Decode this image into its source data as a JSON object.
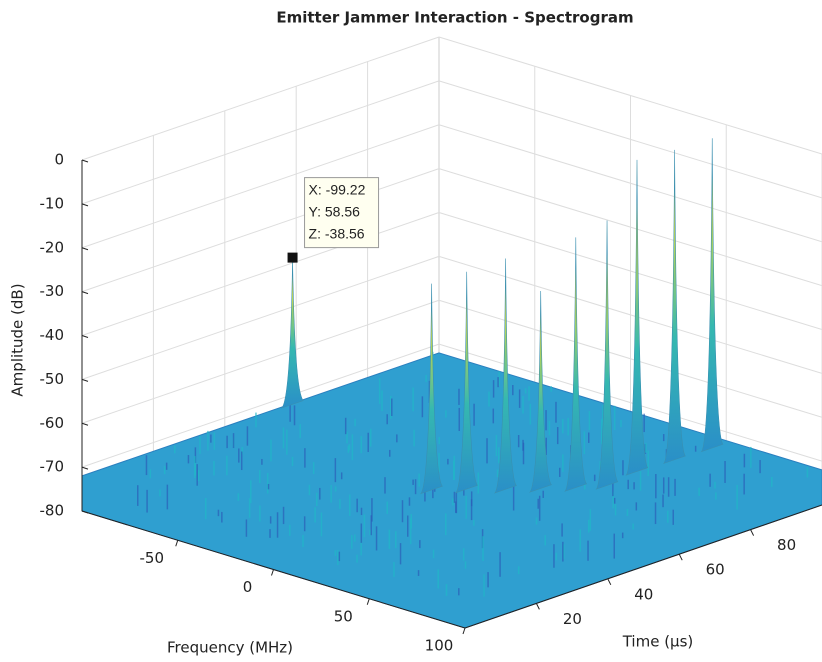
{
  "chart_data": {
    "type": "surface3d",
    "title": "Emitter Jammer Interaction - Spectrogram",
    "xlabel": "Frequency (MHz)",
    "ylabel": "Time (μs)",
    "zlabel": "Amplitude (dB)",
    "xlim": [
      -100,
      100
    ],
    "xticks": [
      -50,
      0,
      50,
      100
    ],
    "ylim": [
      0,
      100
    ],
    "yticks": [
      20,
      40,
      60,
      80
    ],
    "zlim": [
      -80,
      0
    ],
    "zticks": [
      0,
      -10,
      -20,
      -30,
      -40,
      -50,
      -60,
      -70,
      -80
    ],
    "grid": true,
    "noise_floor": -72,
    "peaks": {
      "x": [
        8,
        17,
        28,
        37,
        46,
        53,
        50,
        51,
        52
      ],
      "y": [
        40,
        45,
        50,
        55,
        60,
        65,
        75,
        85,
        95
      ],
      "z": [
        -25,
        -22.5,
        -19.4,
        -27,
        -15,
        -11.6,
        -1,
        -1.4,
        -1.4
      ]
    },
    "datatip": {
      "x": {
        "value": -99.22,
        "label": "X: -99.22"
      },
      "y": {
        "value": 58.56,
        "label": "Y: 58.56"
      },
      "z": {
        "value": -38.56,
        "label": "Z: -38.56"
      }
    }
  }
}
